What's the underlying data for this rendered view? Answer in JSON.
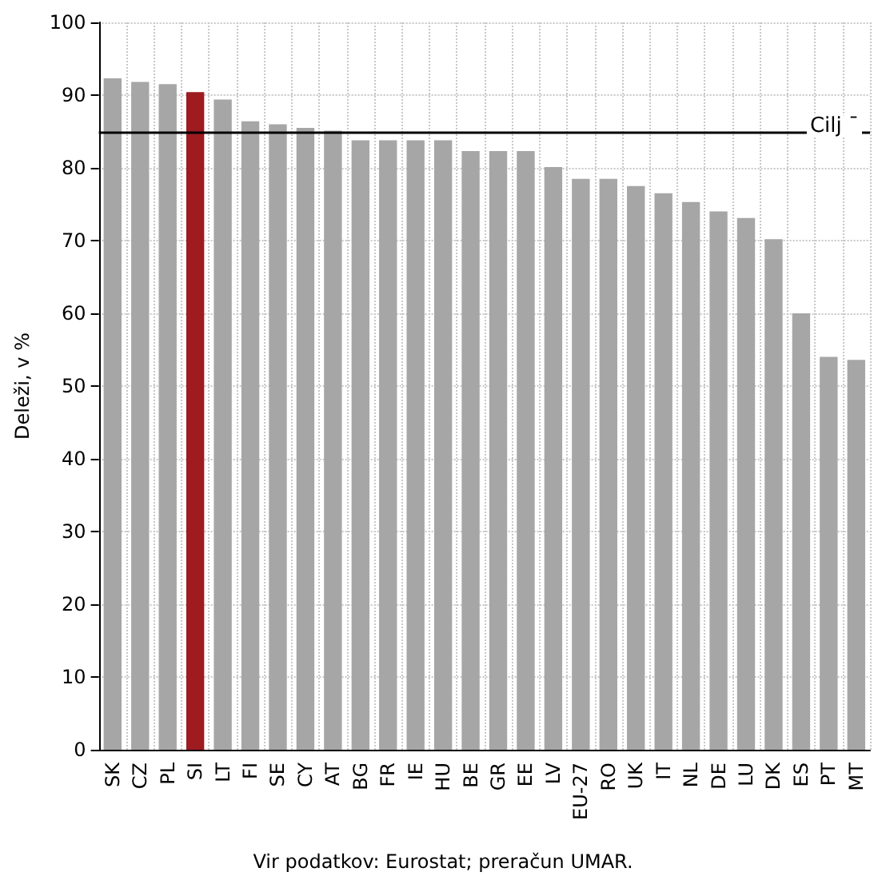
{
  "chart_data": {
    "type": "bar",
    "ylabel": "Deleži, v %",
    "annotations": [
      "Vir podatkov: Eurostat; preračun UMAR."
    ],
    "categories": [
      "SK",
      "CZ",
      "PL",
      "SI",
      "LT",
      "FI",
      "SE",
      "CY",
      "AT",
      "BG",
      "FR",
      "IE",
      "HU",
      "BE",
      "GR",
      "EE",
      "LV",
      "EU-27",
      "RO",
      "UK",
      "IT",
      "NL",
      "DE",
      "LU",
      "DK",
      "ES",
      "PT",
      "MT"
    ],
    "values": [
      92.3,
      91.8,
      91.5,
      90.4,
      89.4,
      86.4,
      86.0,
      85.5,
      85.1,
      83.8,
      83.8,
      83.8,
      83.8,
      82.3,
      82.3,
      82.3,
      80.1,
      78.5,
      78.5,
      77.5,
      76.5,
      75.3,
      74.0,
      73.1,
      70.2,
      60.0,
      54.0,
      53.6
    ],
    "colors": [
      "#a6a6a6",
      "#a6a6a6",
      "#a6a6a6",
      "#9e1b20",
      "#a6a6a6",
      "#a6a6a6",
      "#a6a6a6",
      "#a6a6a6",
      "#a6a6a6",
      "#a6a6a6",
      "#a6a6a6",
      "#a6a6a6",
      "#a6a6a6",
      "#a6a6a6",
      "#a6a6a6",
      "#a6a6a6",
      "#a6a6a6",
      "#a6a6a6",
      "#a6a6a6",
      "#a6a6a6",
      "#a6a6a6",
      "#a6a6a6",
      "#a6a6a6",
      "#a6a6a6",
      "#a6a6a6",
      "#a6a6a6",
      "#a6a6a6",
      "#a6a6a6"
    ],
    "ylim": [
      0,
      100
    ],
    "yticks": [
      0,
      10,
      20,
      30,
      40,
      50,
      60,
      70,
      80,
      90,
      100
    ],
    "grid": true,
    "ref_lines": [
      {
        "axis": "y",
        "value": 85,
        "label": "Cilj ˉ",
        "color": "#000000"
      }
    ]
  }
}
